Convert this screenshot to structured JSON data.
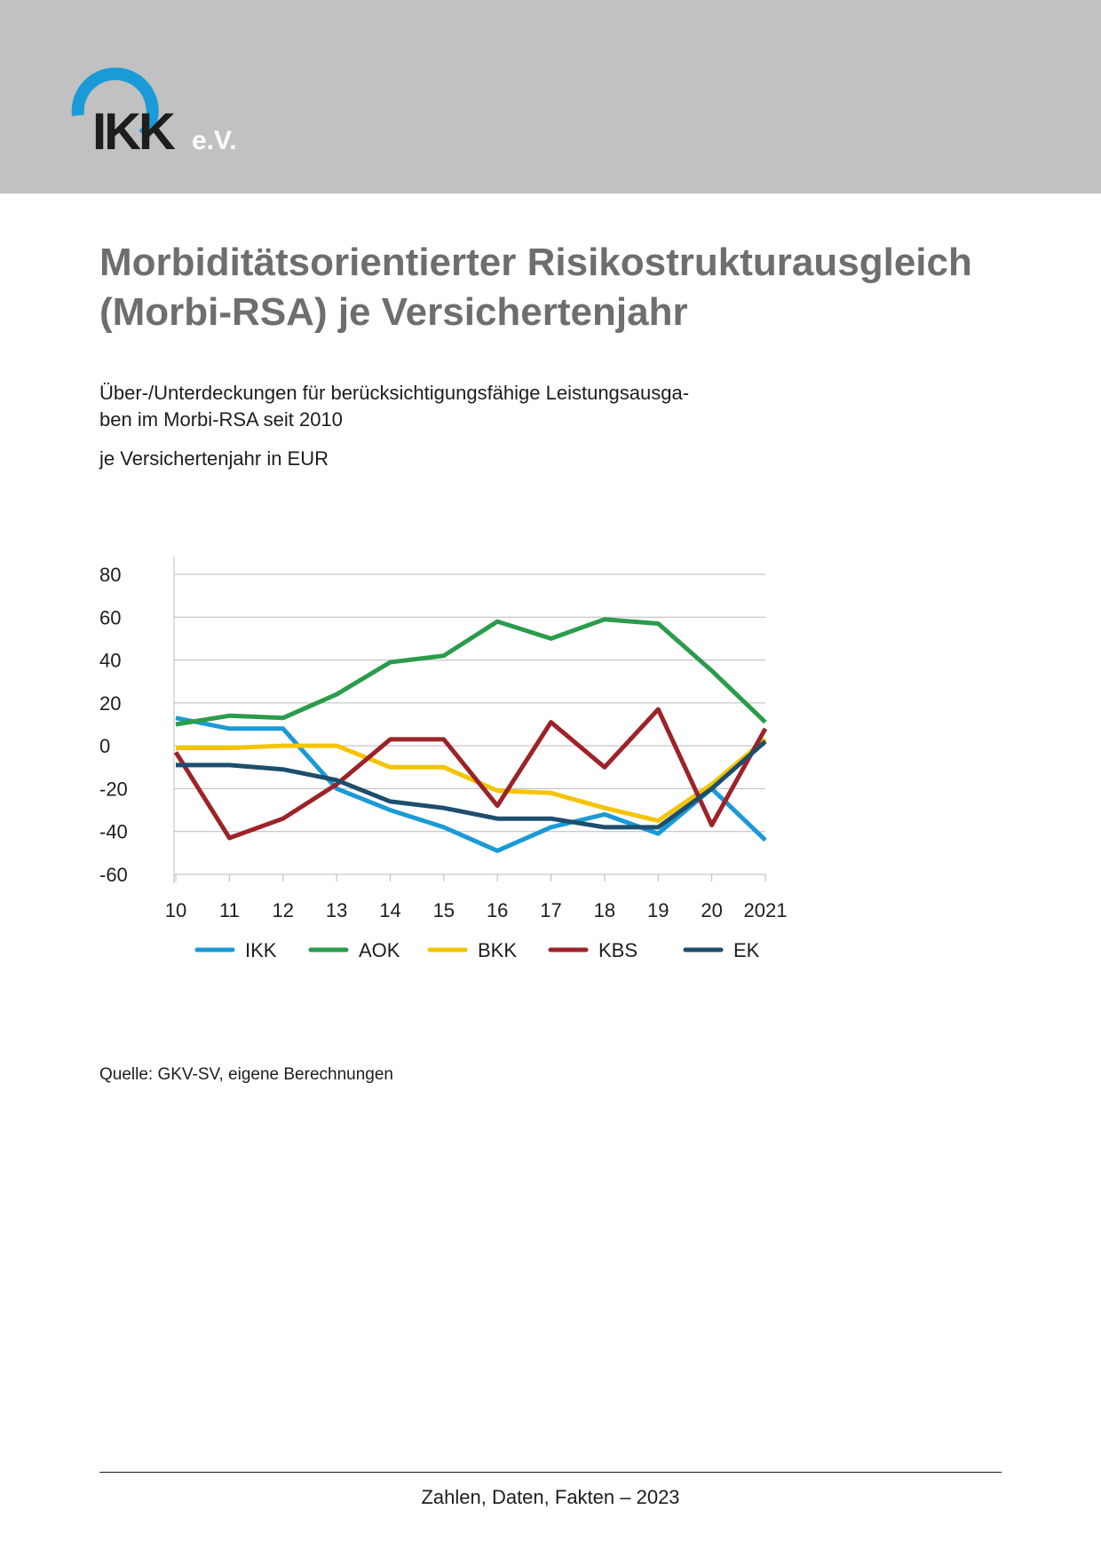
{
  "header": {
    "logo_text": "IKK",
    "logo_suffix": "e.V."
  },
  "title": {
    "line1": "Morbiditätsorientierter Risikostrukturausgleich",
    "line2": "(Morbi-RSA) je Versichertenjahr"
  },
  "subtitle": {
    "line1": "Über-/Unterdeckungen für berücksichtigungsfähige Leistungsausga-",
    "line2": "ben im Morbi-RSA seit 2010"
  },
  "unit_label": "je Versichertenjahr in EUR",
  "source": "Quelle: GKV-SV, eigene Berechnungen",
  "footer": "Zahlen, Daten, Fakten – 2023",
  "colors": {
    "header_band": "#c0c1c0",
    "title": "#6e6e6e",
    "logo_ring": "#1a9ad6"
  },
  "chart_data": {
    "type": "line",
    "categories": [
      "10",
      "11",
      "12",
      "13",
      "14",
      "15",
      "16",
      "17",
      "18",
      "19",
      "20",
      "2021"
    ],
    "ylim": [
      -60,
      80
    ],
    "yticks": [
      80,
      60,
      40,
      20,
      0,
      -20,
      -40,
      -60
    ],
    "grid": true,
    "legend_position": "bottom",
    "series": [
      {
        "name": "IKK",
        "color": "#1a9ad6",
        "values": [
          13,
          8,
          8,
          -20,
          -30,
          -38,
          -49,
          -38,
          -32,
          -41,
          -20,
          -44
        ]
      },
      {
        "name": "AOK",
        "color": "#2a9c4a",
        "values": [
          10,
          14,
          13,
          24,
          39,
          42,
          58,
          50,
          59,
          57,
          35,
          11
        ]
      },
      {
        "name": "BKK",
        "color": "#f4c400",
        "values": [
          -1,
          -1,
          0,
          0,
          -10,
          -10,
          -21,
          -22,
          -29,
          -35,
          -18,
          3
        ]
      },
      {
        "name": "KBS",
        "color": "#9c2328",
        "values": [
          -3,
          -43,
          -34,
          -18,
          3,
          3,
          -28,
          11,
          -10,
          17,
          -37,
          8
        ]
      },
      {
        "name": "EK",
        "color": "#1e4e6e",
        "values": [
          -9,
          -9,
          -11,
          -16,
          -26,
          -29,
          -34,
          -34,
          -38,
          -38,
          -20,
          2
        ]
      }
    ]
  }
}
